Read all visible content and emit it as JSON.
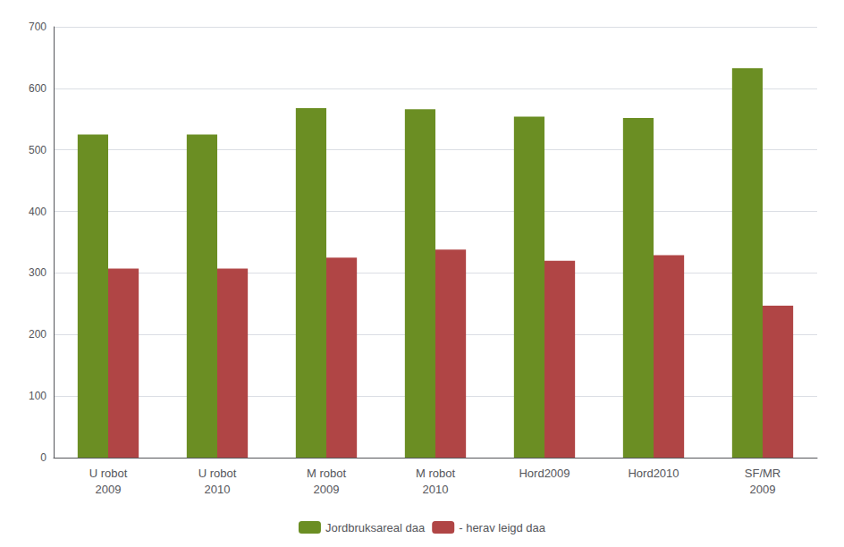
{
  "chart_data": {
    "type": "bar",
    "categories": [
      "U robot\n2009",
      "U robot\n2010",
      "M robot\n2009",
      "M robot\n2010",
      "Hord2009",
      "Hord2010",
      "SF/MR\n2009"
    ],
    "series": [
      {
        "name": "Jordbruksareal daa",
        "color": "#6b8e23",
        "values": [
          525,
          525,
          568,
          566,
          554,
          552,
          633
        ]
      },
      {
        "name": "- herav leigd daa",
        "color": "#b04545",
        "values": [
          307,
          307,
          325,
          338,
          320,
          329,
          247
        ]
      }
    ],
    "ylim": [
      0,
      700
    ],
    "yticks": [
      0,
      100,
      200,
      300,
      400,
      500,
      600,
      700
    ],
    "grid": true,
    "legend": "bottom"
  }
}
